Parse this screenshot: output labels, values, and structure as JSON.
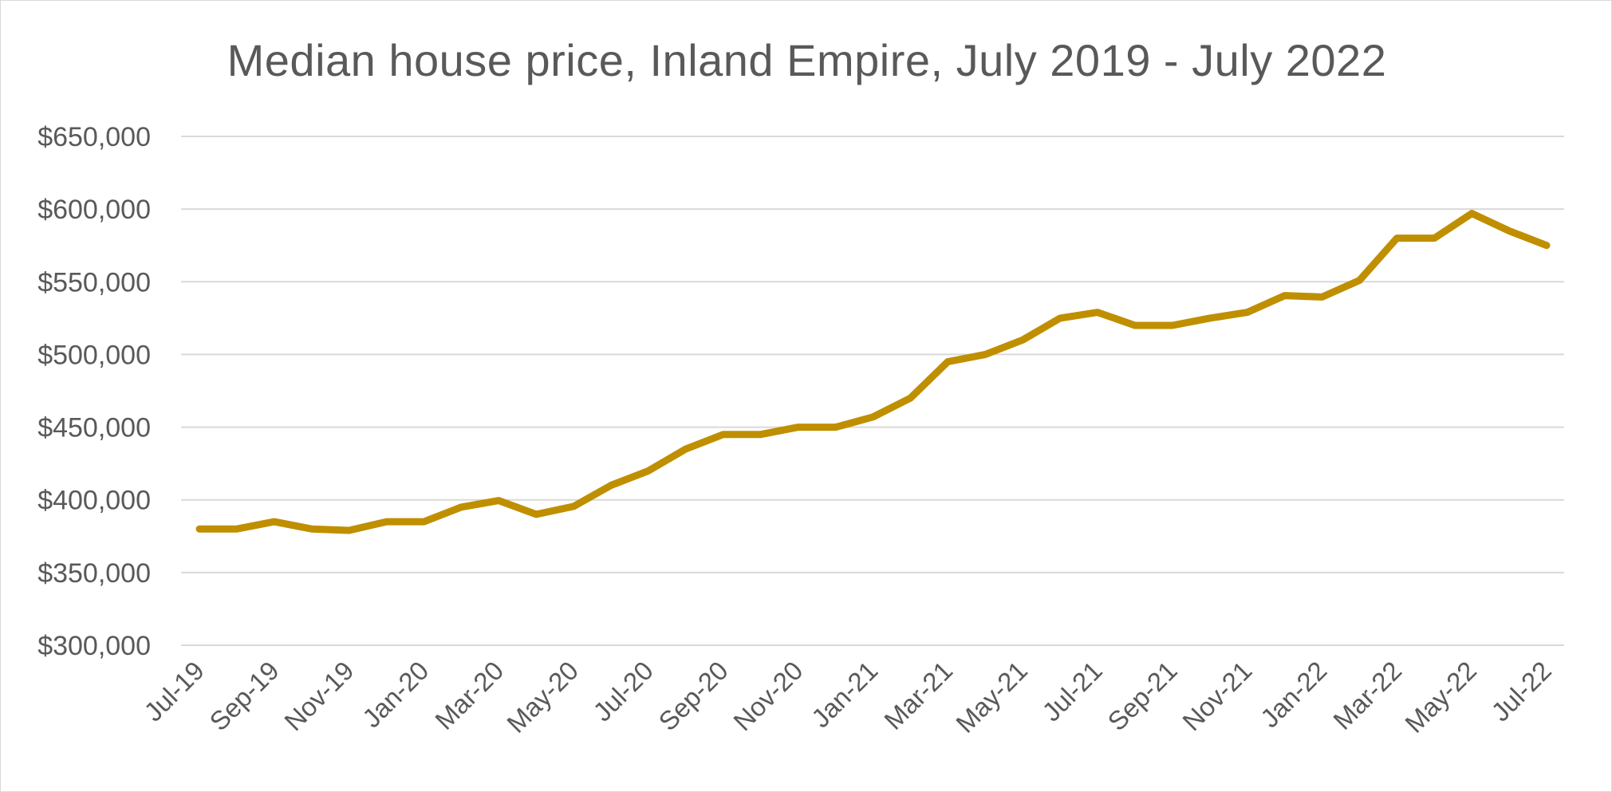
{
  "chart_data": {
    "type": "line",
    "title": "Median house price, Inland Empire, July 2019 - July 2022",
    "xlabel": "",
    "ylabel": "",
    "ylim": [
      300000,
      650000
    ],
    "y_ticks": [
      300000,
      350000,
      400000,
      450000,
      500000,
      550000,
      600000,
      650000
    ],
    "y_tick_labels": [
      "$300,000",
      "$350,000",
      "$400,000",
      "$450,000",
      "$500,000",
      "$550,000",
      "$600,000",
      "$650,000"
    ],
    "grid": true,
    "legend": "none",
    "x_tick_labels": [
      "Jul-19",
      "Sep-19",
      "Nov-19",
      "Jan-20",
      "Mar-20",
      "May-20",
      "Jul-20",
      "Sep-20",
      "Nov-20",
      "Jan-21",
      "Mar-21",
      "May-21",
      "Jul-21",
      "Sep-21",
      "Nov-21",
      "Jan-22",
      "Mar-22",
      "May-22",
      "Jul-22"
    ],
    "x": [
      "Jul-19",
      "Aug-19",
      "Sep-19",
      "Oct-19",
      "Nov-19",
      "Dec-19",
      "Jan-20",
      "Feb-20",
      "Mar-20",
      "Apr-20",
      "May-20",
      "Jun-20",
      "Jul-20",
      "Aug-20",
      "Sep-20",
      "Oct-20",
      "Nov-20",
      "Dec-20",
      "Jan-21",
      "Feb-21",
      "Mar-21",
      "Apr-21",
      "May-21",
      "Jun-21",
      "Jul-21",
      "Aug-21",
      "Sep-21",
      "Oct-21",
      "Nov-21",
      "Dec-21",
      "Jan-22",
      "Feb-22",
      "Mar-22",
      "Apr-22",
      "May-22",
      "Jun-22",
      "Jul-22"
    ],
    "series": [
      {
        "color": "#bf8f00",
        "values": [
          380000,
          380000,
          385000,
          380000,
          379000,
          385000,
          385000,
          395000,
          399500,
          390000,
          395500,
          410000,
          420000,
          435000,
          445000,
          445000,
          450000,
          450000,
          457000,
          470000,
          495000,
          500000,
          510000,
          525000,
          529000,
          520000,
          520000,
          525000,
          529000,
          540500,
          539500,
          551000,
          580000,
          580000,
          597000,
          585000,
          575000
        ]
      }
    ]
  }
}
